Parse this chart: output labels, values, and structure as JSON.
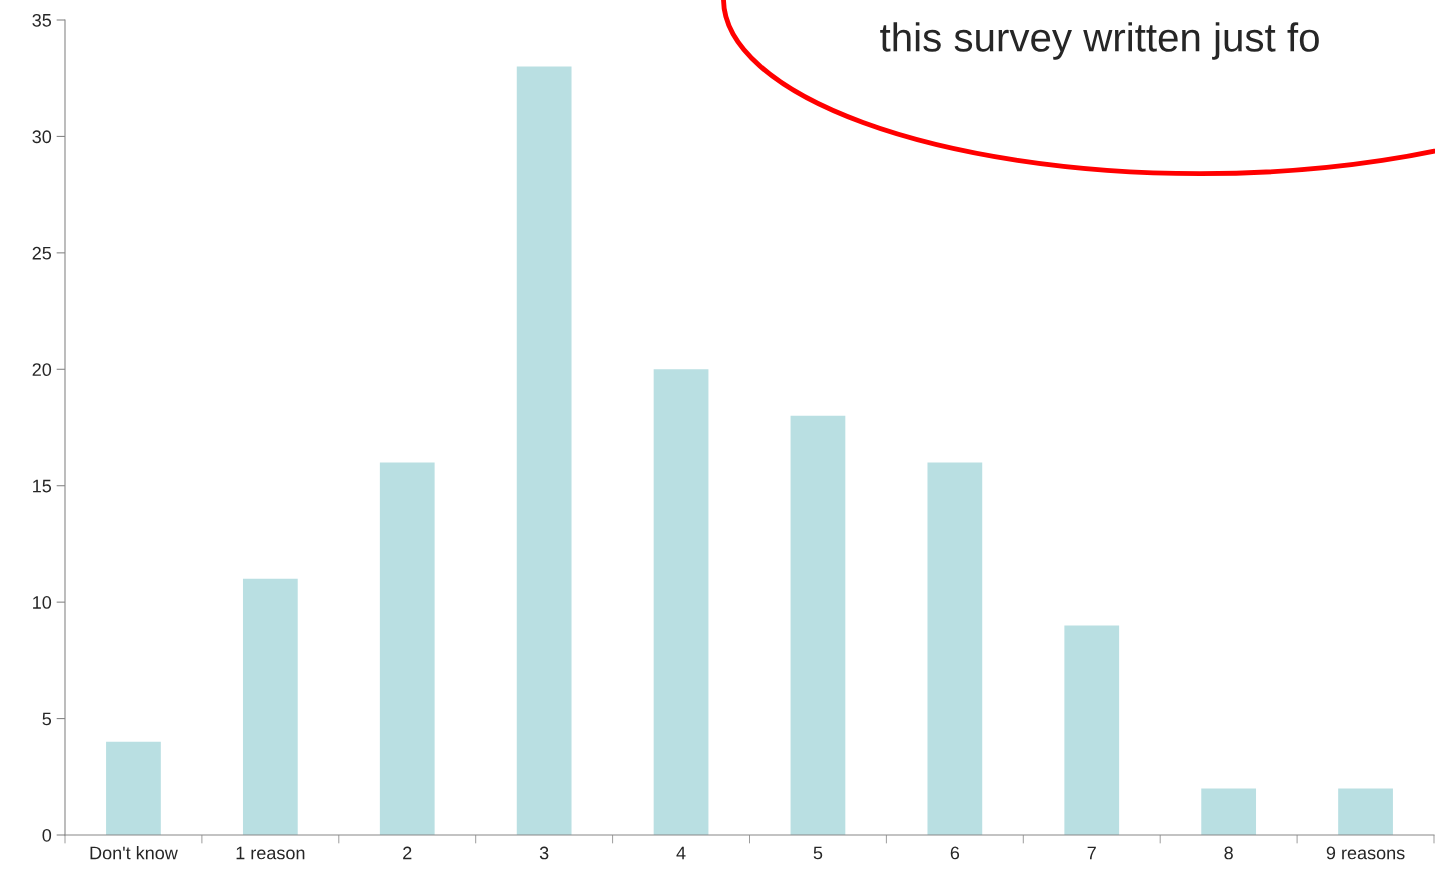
{
  "chart_data": {
    "type": "bar",
    "categories": [
      "Don't know",
      "1 reason",
      "2",
      "3",
      "4",
      "5",
      "6",
      "7",
      "8",
      "9 reasons"
    ],
    "values": [
      4,
      11,
      16,
      33,
      20,
      18,
      16,
      9,
      2,
      2
    ],
    "color": "#b9dfe2",
    "ylim": [
      0,
      35
    ],
    "yticks": [
      0,
      5,
      10,
      15,
      20,
      25,
      30,
      35
    ],
    "grid": false,
    "legend": false,
    "annotations": [
      "this survey written just fo"
    ]
  }
}
